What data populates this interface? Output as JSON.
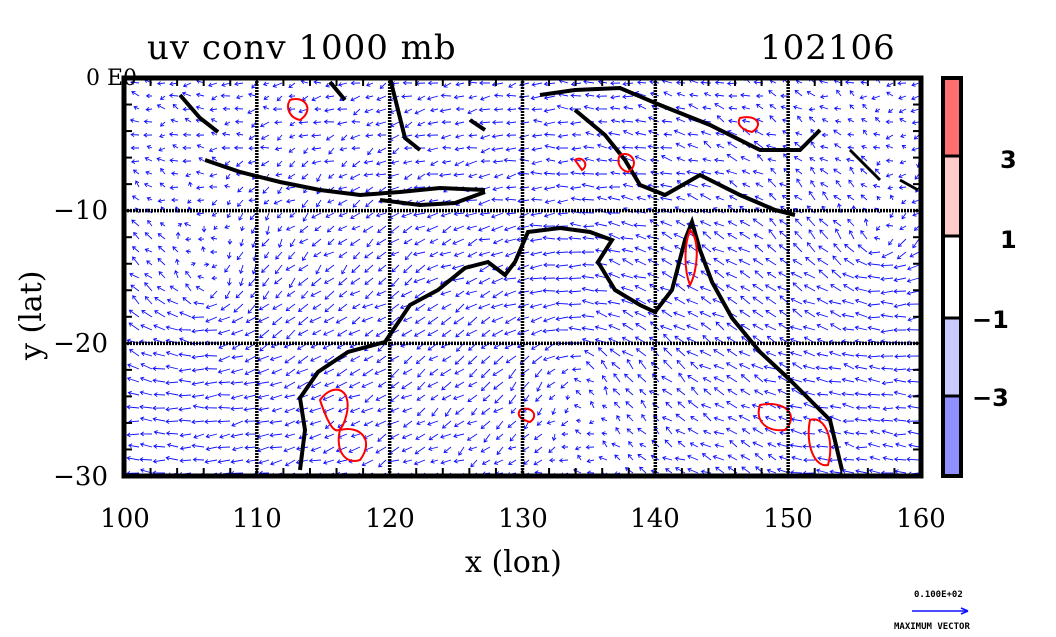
{
  "title": {
    "field": "uv conv 1000 mb",
    "date": "102106"
  },
  "corner_label": "0 E0",
  "axes": {
    "xlabel": "x (lon)",
    "ylabel": "y (lat)",
    "x_range": [
      100,
      160
    ],
    "y_range": [
      -30,
      0
    ],
    "x_ticks": [
      "100",
      "110",
      "120",
      "130",
      "140",
      "150",
      "160"
    ],
    "y_ticks": [
      "−10",
      "−20",
      "−30"
    ],
    "gridlines_lon": [
      110,
      120,
      130,
      140,
      150
    ],
    "gridlines_lat": [
      -10,
      -20
    ]
  },
  "colorbar": {
    "labels": [
      "3",
      "1",
      "−1",
      "−3"
    ],
    "colors": [
      "#ff6f6f",
      "#ffcaca",
      "#ffffff",
      "#cacaff",
      "#8f8fff"
    ]
  },
  "vector_key": {
    "value": "0.100E+02",
    "label": "MAXIMUM VECTOR"
  },
  "colors": {
    "vectors": "#1010ff",
    "positive_contour": "#ff0000",
    "negative_fill": "#b8b8ff",
    "coast": "#000000"
  }
}
